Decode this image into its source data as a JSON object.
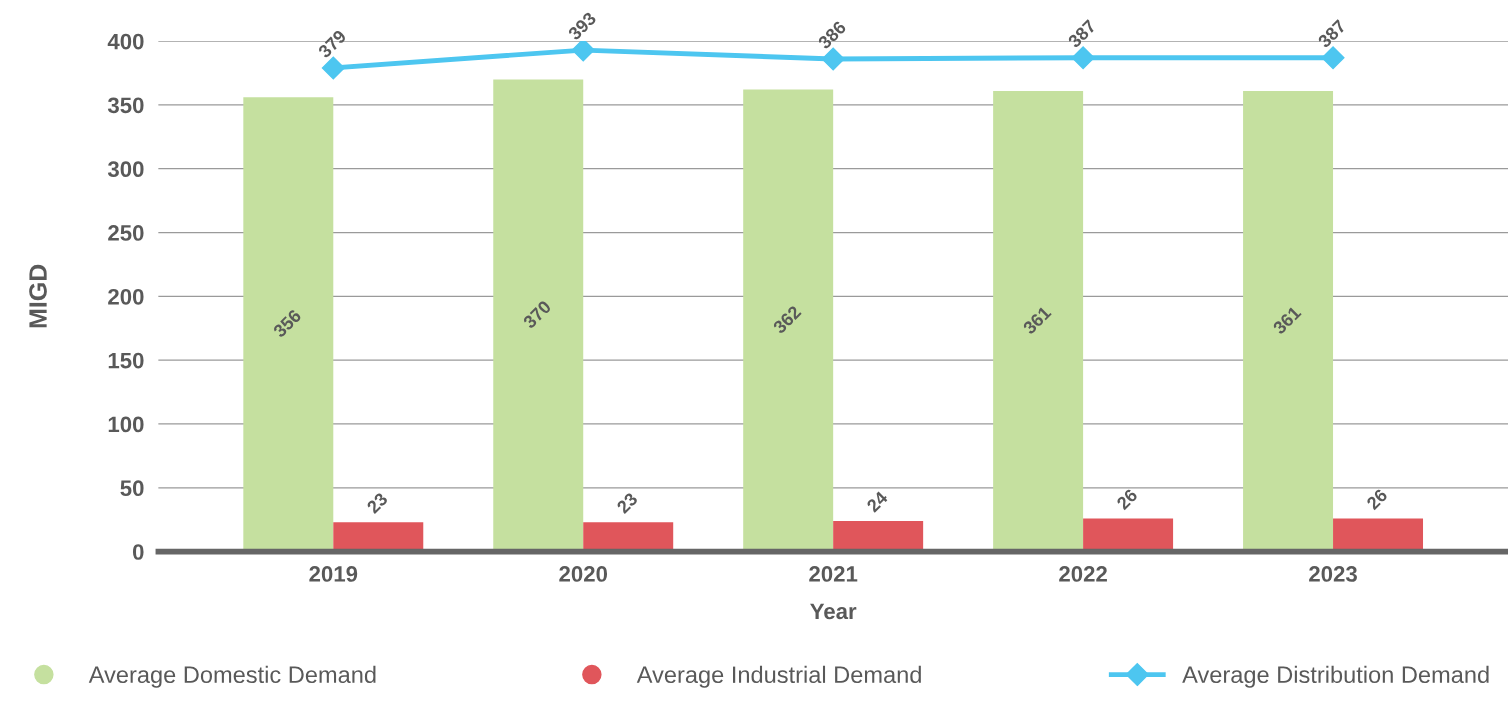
{
  "chart_data": {
    "type": "bar",
    "xlabel": "Year",
    "ylabel": "MIGD",
    "categories": [
      "2019",
      "2020",
      "2021",
      "2022",
      "2023"
    ],
    "series": [
      {
        "name": "Average Domestic Demand",
        "color": "#c5e09f",
        "values": [
          356,
          370,
          362,
          361,
          361
        ]
      },
      {
        "name": "Average Industrial Demand",
        "color": "#e0565b",
        "values": [
          23,
          23,
          24,
          26,
          26
        ]
      },
      {
        "name": "Average Distribution Demand",
        "color": "#4dc6f0",
        "type": "line",
        "values": [
          379,
          393,
          386,
          387,
          387
        ]
      }
    ],
    "ylim": [
      0,
      400
    ],
    "yticks": [
      0,
      50,
      100,
      150,
      200,
      250,
      300,
      350,
      400
    ],
    "grid": "y",
    "legend": "bottom",
    "marker": "diamond",
    "line_style": "solid",
    "data_labels": true
  }
}
